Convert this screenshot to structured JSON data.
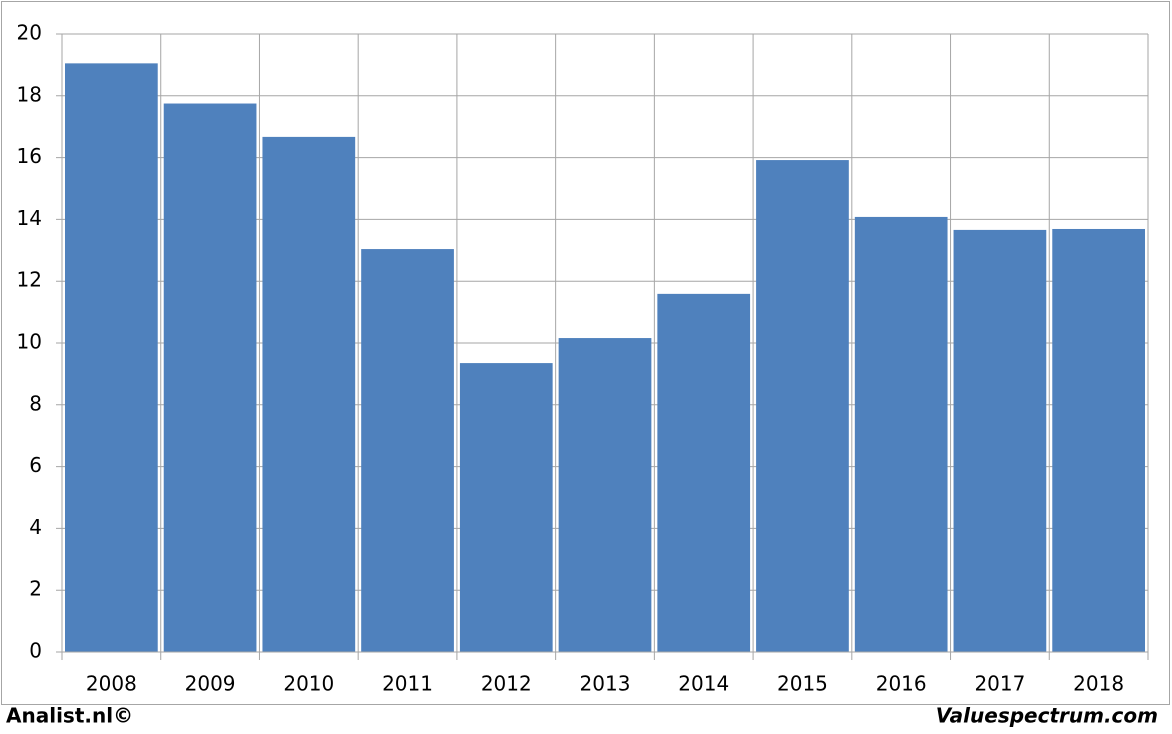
{
  "chart_data": {
    "type": "bar",
    "categories": [
      "2008",
      "2009",
      "2010",
      "2011",
      "2012",
      "2013",
      "2014",
      "2015",
      "2016",
      "2017",
      "2018"
    ],
    "values": [
      19.05,
      17.75,
      16.67,
      13.04,
      9.35,
      10.16,
      11.59,
      15.92,
      14.08,
      13.66,
      13.69
    ],
    "color": "#4f81bd",
    "ylim": [
      0,
      20
    ],
    "yticks": [
      0,
      2,
      4,
      6,
      8,
      10,
      12,
      14,
      16,
      18,
      20
    ],
    "grid": true,
    "annotations": [
      "Analist.nl©",
      "Valuespectrum.com"
    ]
  }
}
